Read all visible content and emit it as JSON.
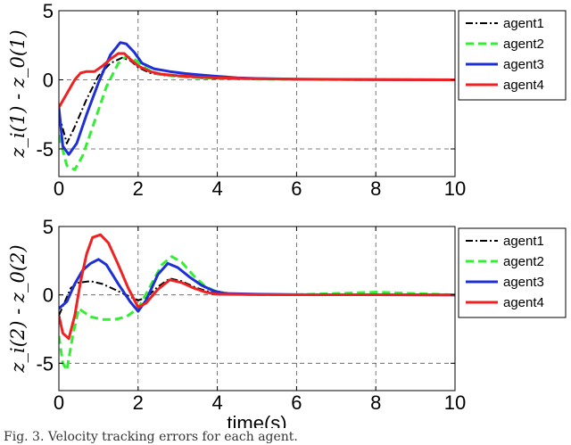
{
  "chart_data": [
    {
      "type": "line",
      "title": "",
      "xlabel": "",
      "ylabel": "z_i(1) - z_0(1)",
      "xlim": [
        0,
        10
      ],
      "ylim": [
        -7,
        5
      ],
      "xticks": [
        "0",
        "2",
        "4",
        "6",
        "8",
        "10"
      ],
      "yticks": [
        "-5",
        "0",
        "5"
      ],
      "grid": true,
      "legend_position": "top-right",
      "series": [
        {
          "name": "agent1",
          "color": "#000000",
          "dash": "dashdot",
          "x": [
            0,
            0.2,
            0.4,
            0.7,
            1.0,
            1.3,
            1.6,
            1.8,
            2.0,
            2.3,
            2.6,
            3.0,
            3.5,
            4.0,
            5.0,
            6.0,
            7.0,
            8.0,
            10.0
          ],
          "y": [
            -2.5,
            -4.6,
            -3.4,
            -1.4,
            0.3,
            1.2,
            1.6,
            1.4,
            0.9,
            0.5,
            0.35,
            0.25,
            0.15,
            0.1,
            0.05,
            0.03,
            0.02,
            0.01,
            0
          ]
        },
        {
          "name": "agent2",
          "color": "#33ee33",
          "dash": "dashed",
          "x": [
            0,
            0.2,
            0.4,
            0.6,
            0.9,
            1.2,
            1.5,
            1.7,
            1.9,
            2.1,
            2.4,
            2.8,
            3.2,
            3.6,
            4.0,
            5.0,
            6.0,
            8.0,
            10.0
          ],
          "y": [
            -4.0,
            -6.2,
            -6.5,
            -5.5,
            -3.0,
            -0.5,
            1.2,
            1.7,
            1.5,
            1.0,
            0.5,
            0.3,
            0.2,
            0.15,
            0.1,
            0.05,
            0.03,
            0.01,
            0
          ]
        },
        {
          "name": "agent3",
          "color": "#1f2fd6",
          "dash": "solid",
          "x": [
            0,
            0.1,
            0.25,
            0.45,
            0.7,
            1.0,
            1.3,
            1.55,
            1.7,
            1.9,
            2.1,
            2.4,
            2.8,
            3.2,
            3.6,
            4.0,
            4.5,
            5.0,
            6.0,
            8.0,
            10.0
          ],
          "y": [
            -2.0,
            -4.8,
            -5.4,
            -4.6,
            -2.5,
            -0.2,
            1.8,
            2.7,
            2.6,
            2.0,
            1.2,
            0.8,
            0.6,
            0.45,
            0.35,
            0.25,
            0.15,
            0.1,
            0.05,
            0.01,
            0
          ]
        },
        {
          "name": "agent4",
          "color": "#ee2222",
          "dash": "solid",
          "x": [
            0,
            0.2,
            0.4,
            0.55,
            0.7,
            0.9,
            1.1,
            1.3,
            1.5,
            1.65,
            1.8,
            2.0,
            2.3,
            2.6,
            3.0,
            3.5,
            4.0,
            5.0,
            6.0,
            8.0,
            10.0
          ],
          "y": [
            -2.0,
            -1.0,
            0.0,
            0.5,
            0.6,
            0.6,
            1.0,
            1.5,
            1.9,
            1.9,
            1.5,
            1.0,
            0.6,
            0.4,
            0.3,
            0.2,
            0.15,
            0.08,
            0.04,
            0.01,
            0
          ]
        }
      ]
    },
    {
      "type": "line",
      "title": "",
      "xlabel": "time(s)",
      "ylabel": "z_i(2) - z_0(2)",
      "xlim": [
        0,
        10
      ],
      "ylim": [
        -7,
        5
      ],
      "xticks": [
        "0",
        "2",
        "4",
        "6",
        "8",
        "10"
      ],
      "yticks": [
        "-5",
        "0",
        "5"
      ],
      "grid": true,
      "legend_position": "top-right",
      "series": [
        {
          "name": "agent1",
          "color": "#000000",
          "dash": "dashdot",
          "x": [
            0,
            0.15,
            0.3,
            0.5,
            0.8,
            1.1,
            1.4,
            1.7,
            2.0,
            2.2,
            2.5,
            2.8,
            3.1,
            3.4,
            3.7,
            4.0,
            5.0,
            6.0,
            8.0,
            10.0
          ],
          "y": [
            -1.5,
            -0.5,
            0.5,
            0.9,
            1.0,
            0.8,
            0.4,
            0.0,
            -0.4,
            -0.2,
            0.6,
            1.2,
            1.0,
            0.6,
            0.3,
            0.1,
            0.05,
            0.02,
            0.01,
            0
          ]
        },
        {
          "name": "agent2",
          "color": "#33ee33",
          "dash": "dashed",
          "x": [
            0,
            0.1,
            0.2,
            0.35,
            0.5,
            0.8,
            1.1,
            1.4,
            1.7,
            2.0,
            2.3,
            2.6,
            2.85,
            3.1,
            3.4,
            3.7,
            4.0,
            4.5,
            5.0,
            6.0,
            8.0,
            10.0
          ],
          "y": [
            -3.0,
            -5.0,
            -5.5,
            -3.0,
            -1.0,
            -1.6,
            -1.8,
            -1.8,
            -1.6,
            -1.0,
            0.6,
            2.2,
            2.8,
            2.4,
            1.4,
            0.6,
            0.2,
            0.05,
            0.02,
            0.01,
            0.2,
            0
          ]
        },
        {
          "name": "agent3",
          "color": "#1f2fd6",
          "dash": "solid",
          "x": [
            0,
            0.2,
            0.4,
            0.6,
            0.8,
            1.0,
            1.2,
            1.5,
            1.8,
            2.0,
            2.2,
            2.5,
            2.75,
            3.0,
            3.3,
            3.6,
            3.9,
            4.2,
            5.0,
            6.0,
            8.0,
            10.0
          ],
          "y": [
            -1.0,
            -0.5,
            0.8,
            1.8,
            2.3,
            2.6,
            2.2,
            0.8,
            -0.5,
            -1.2,
            -0.4,
            1.5,
            2.3,
            2.0,
            1.3,
            0.7,
            0.3,
            0.1,
            0.05,
            0.02,
            0.01,
            0
          ]
        },
        {
          "name": "agent4",
          "color": "#ee2222",
          "dash": "solid",
          "x": [
            0,
            0.1,
            0.25,
            0.4,
            0.55,
            0.7,
            0.85,
            1.05,
            1.25,
            1.5,
            1.75,
            2.0,
            2.2,
            2.5,
            2.8,
            3.1,
            3.4,
            3.7,
            4.0,
            5.0,
            6.0,
            8.0,
            10.0
          ],
          "y": [
            -1.5,
            -2.8,
            -3.2,
            -1.5,
            1.0,
            3.0,
            4.2,
            4.4,
            3.8,
            2.2,
            0.5,
            -0.9,
            -0.6,
            0.4,
            1.1,
            0.9,
            0.5,
            0.2,
            0.05,
            0.02,
            0.01,
            0.01,
            0
          ]
        }
      ]
    }
  ],
  "caption": "Fig. 3.   Velocity tracking errors for each agent."
}
